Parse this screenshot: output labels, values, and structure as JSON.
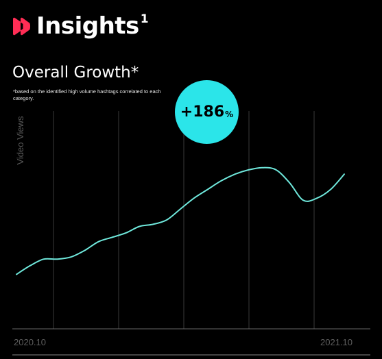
{
  "header": {
    "title": "Insights",
    "superscript": "1",
    "logo_icon": "double-play-icon",
    "logo_color": "#ff2d55"
  },
  "badge": {
    "value": "+186",
    "unit": "%",
    "color": "#2be5e9"
  },
  "chart_data": {
    "type": "line",
    "title": "Overall Growth*",
    "subtitle": "*based on the identified high volume hashtags correlated to each category.",
    "xlabel": "",
    "ylabel": "Video Views",
    "x_tick_labels": [
      "2020.10",
      "2021.10"
    ],
    "y_tick_labels": [],
    "grid": "vertical",
    "legend": "none",
    "line_color": "#6fe8dc",
    "xlim": [
      0,
      12
    ],
    "ylim": [
      0,
      100
    ],
    "series": [
      {
        "x": [
          0,
          0.5,
          1,
          1.5,
          2,
          2.5,
          3,
          3.5,
          4,
          4.5,
          5,
          5.5,
          6,
          6.5,
          7,
          7.5,
          8,
          8.5,
          9,
          9.5,
          10,
          10.5,
          11,
          11.5,
          12
        ],
        "values": [
          25,
          29,
          32,
          32,
          33,
          36,
          40,
          42,
          44,
          47,
          48,
          50,
          55,
          60,
          64,
          68,
          71,
          73,
          74,
          73,
          67,
          59,
          60,
          64,
          71
        ]
      }
    ]
  }
}
